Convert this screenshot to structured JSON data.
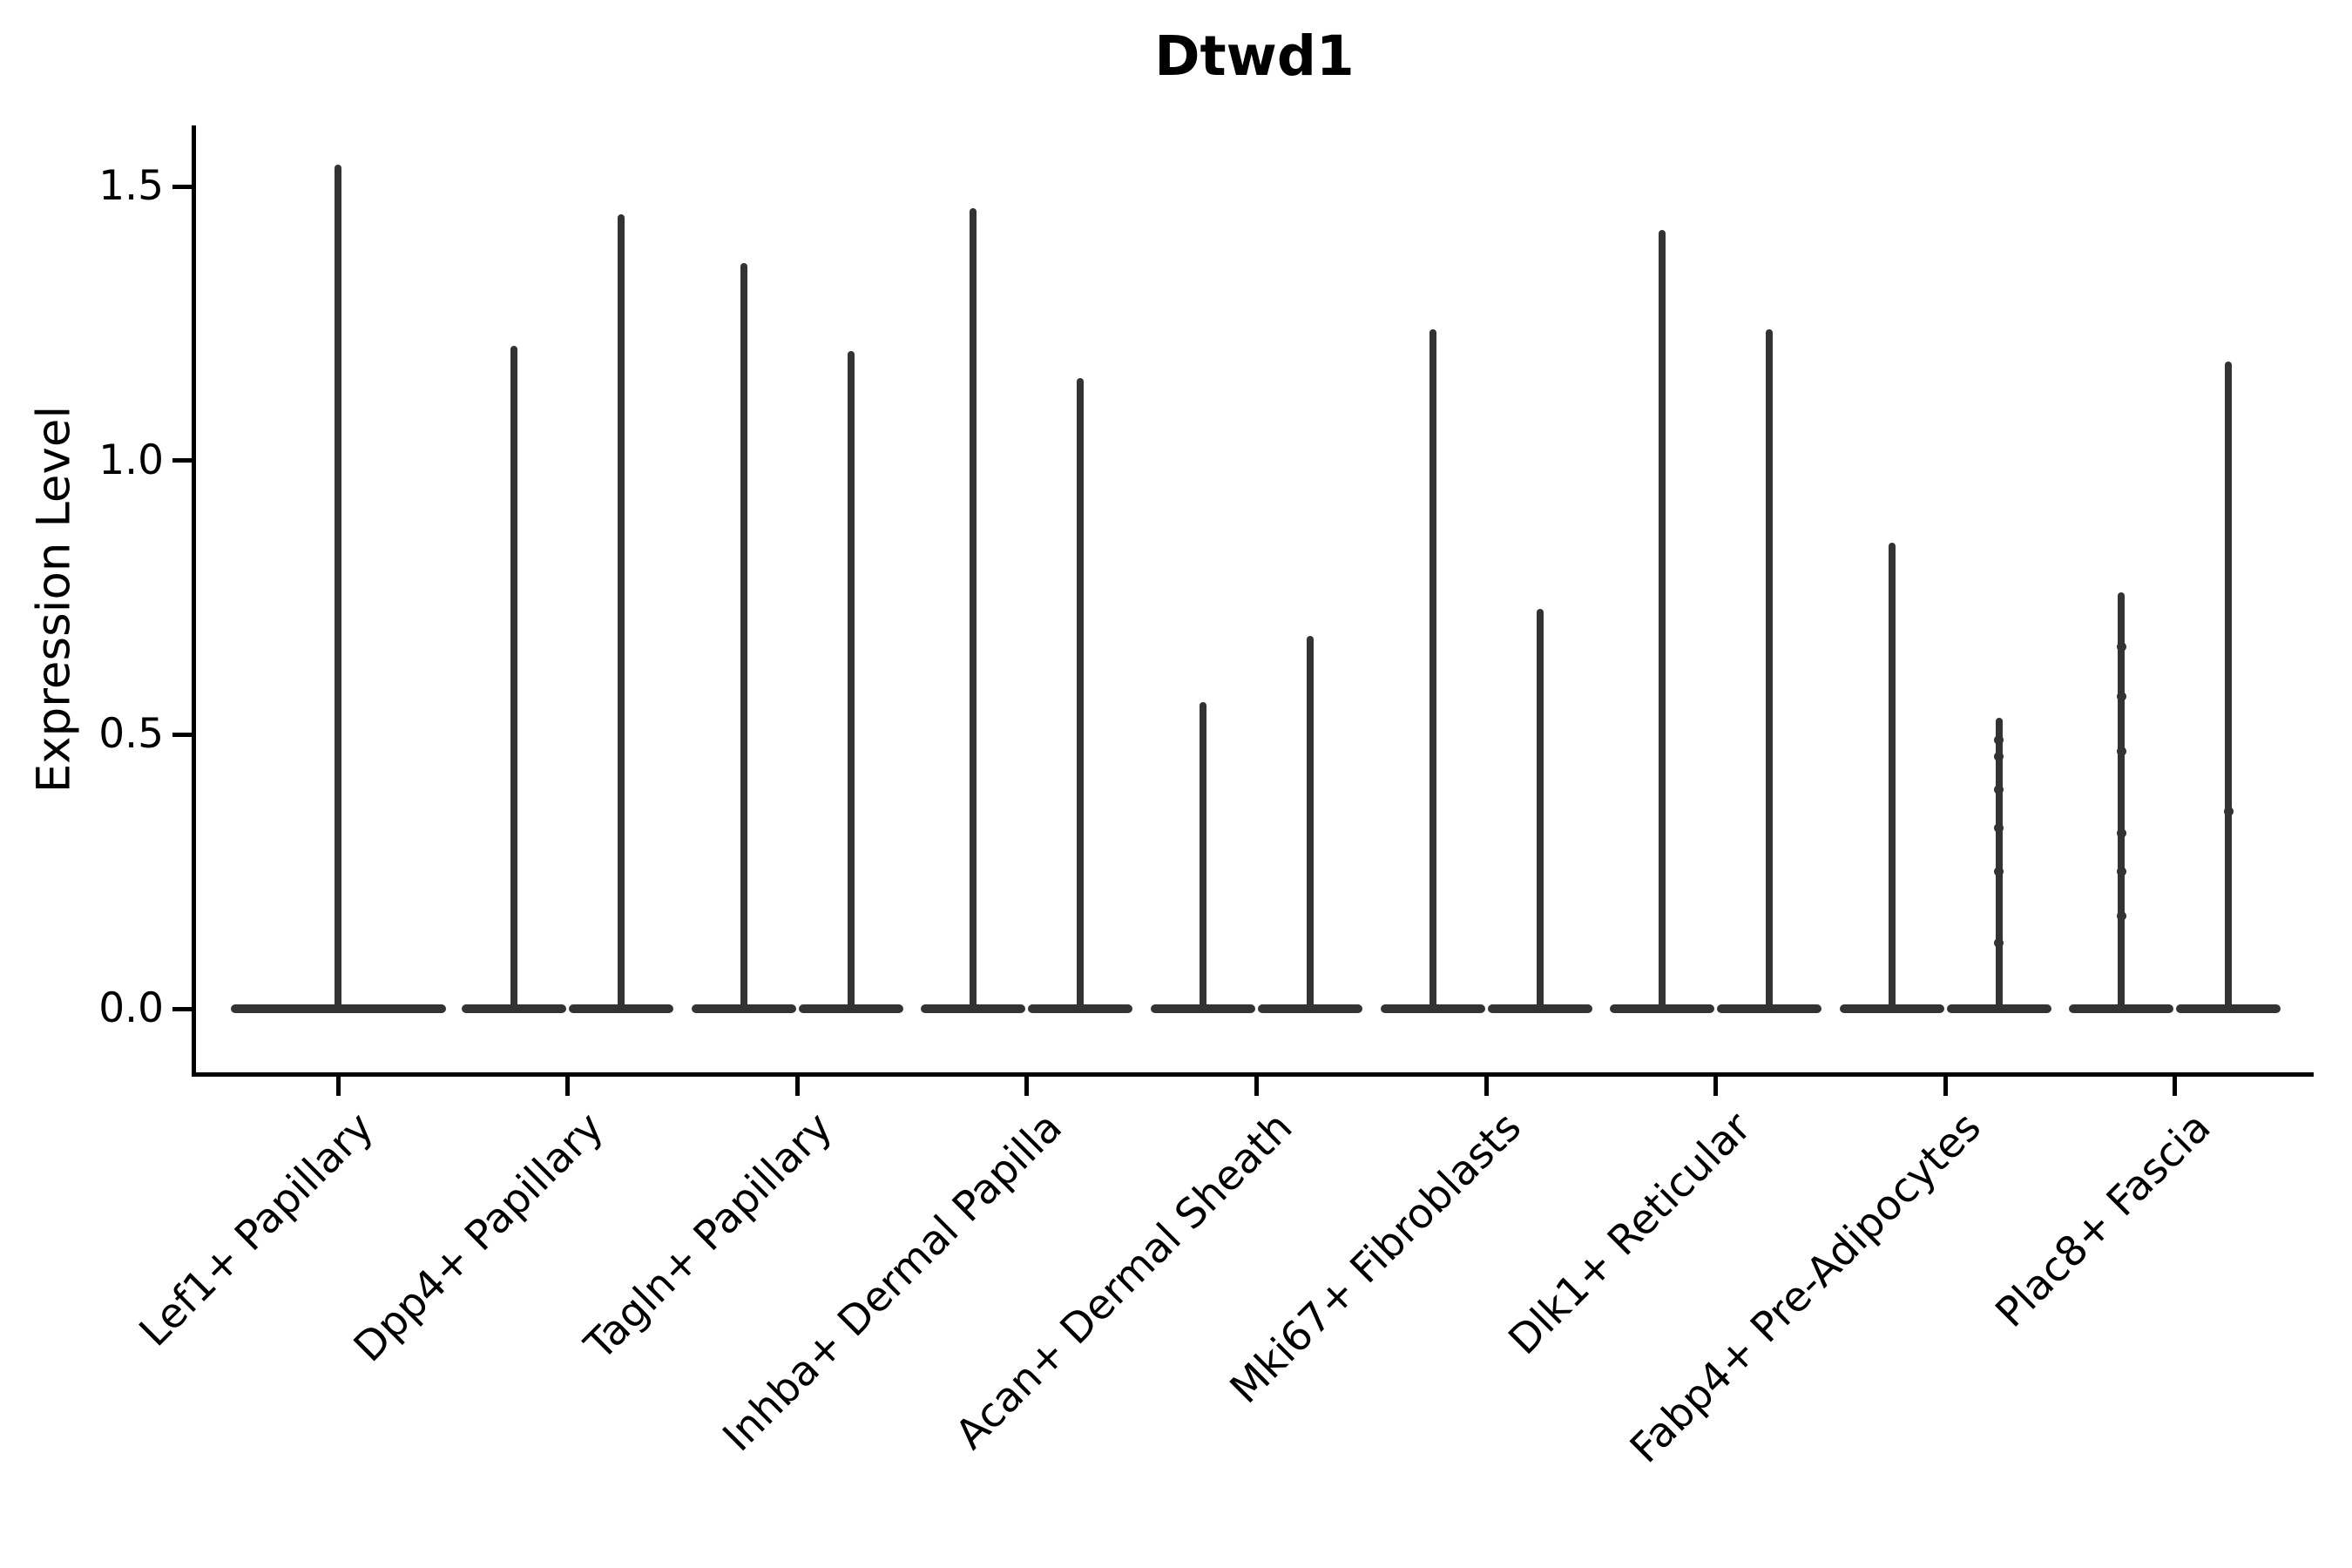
{
  "chart_data": {
    "type": "violin",
    "title": "Dtwd1",
    "xlabel": "",
    "ylabel": "Expression Level",
    "ylim": [
      -0.12,
      1.62
    ],
    "yticks": [
      0.0,
      0.5,
      1.0,
      1.5
    ],
    "ytick_labels": [
      "0.0",
      "0.5",
      "1.0",
      "1.5"
    ],
    "grid": false,
    "legend": null,
    "violin_color": "#333333",
    "axis_color": "#000000",
    "baseline_value": 0.0,
    "note": "Each violin is concentrated at expression 0 (wide flat base) with a thin spike up to its maximum expression value; first category has a single centered violin, all others have two.",
    "groups": [
      {
        "category": "Lef1+ Papillary",
        "violins": [
          {
            "peak": 1.54,
            "dots": []
          }
        ]
      },
      {
        "category": "Dpp4+ Papillary",
        "violins": [
          {
            "peak": 1.21,
            "dots": []
          },
          {
            "peak": 1.45,
            "dots": []
          }
        ]
      },
      {
        "category": "Tagln+ Papillary",
        "violins": [
          {
            "peak": 1.36,
            "dots": []
          },
          {
            "peak": 1.2,
            "dots": []
          }
        ]
      },
      {
        "category": "Inhba+ Dermal Papilla",
        "violins": [
          {
            "peak": 1.46,
            "dots": []
          },
          {
            "peak": 1.15,
            "dots": []
          }
        ]
      },
      {
        "category": "Acan+ Dermal Sheath",
        "violins": [
          {
            "peak": 0.56,
            "dots": []
          },
          {
            "peak": 0.68,
            "dots": []
          }
        ]
      },
      {
        "category": "Mki67+ Fibroblasts",
        "violins": [
          {
            "peak": 1.24,
            "dots": []
          },
          {
            "peak": 0.73,
            "dots": []
          }
        ]
      },
      {
        "category": "Dlk1+ Reticular",
        "violins": [
          {
            "peak": 1.42,
            "dots": []
          },
          {
            "peak": 1.24,
            "dots": []
          }
        ]
      },
      {
        "category": "Fabp4+ Pre-Adipocytes",
        "violins": [
          {
            "peak": 0.85,
            "dots": []
          },
          {
            "peak": 0.53,
            "dots": [
              0.49,
              0.46,
              0.4,
              0.33,
              0.25,
              0.12
            ]
          }
        ]
      },
      {
        "category": "Plac8+ Fascia",
        "violins": [
          {
            "peak": 0.76,
            "dots": [
              0.66,
              0.57,
              0.47,
              0.32,
              0.25,
              0.17
            ]
          },
          {
            "peak": 1.18,
            "dots": [
              0.36
            ]
          }
        ]
      }
    ]
  }
}
